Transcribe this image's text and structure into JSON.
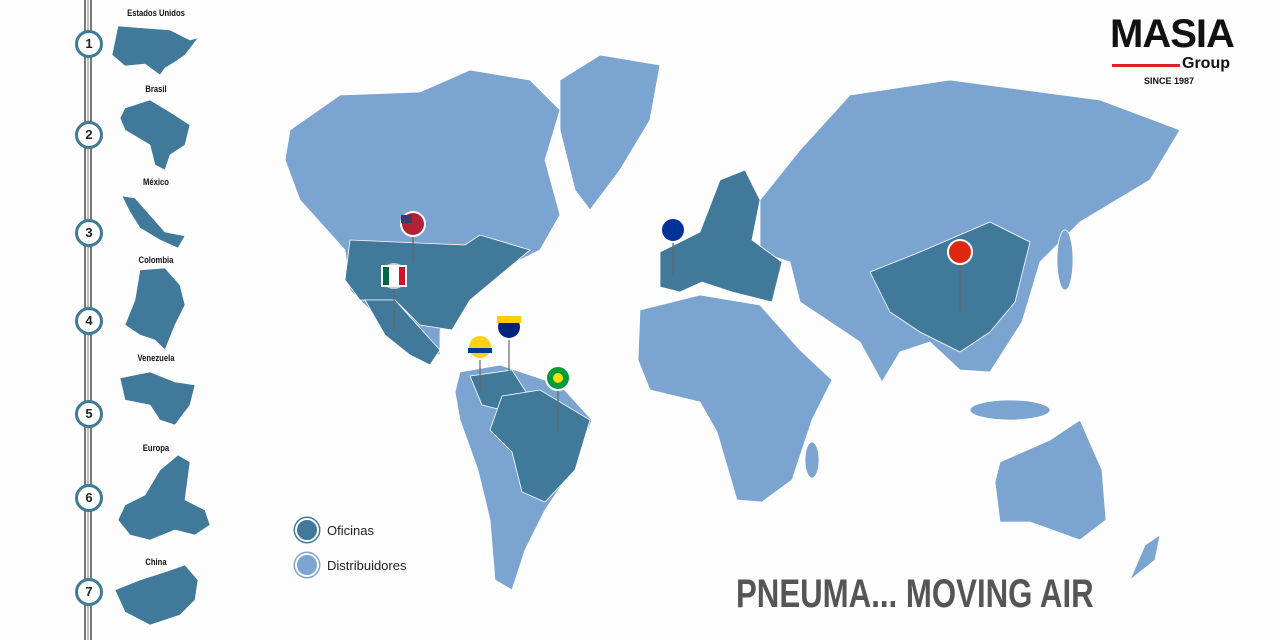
{
  "brand": {
    "name": "MASIA",
    "sub": "Group",
    "since": "SINCE 1987"
  },
  "colors": {
    "offices": "#41799a",
    "distributors": "#7ba4d1",
    "accent": "#d22222"
  },
  "steps": [
    {
      "n": "1",
      "country": "Estados Unidos"
    },
    {
      "n": "2",
      "country": "Brasil"
    },
    {
      "n": "3",
      "country": "México"
    },
    {
      "n": "4",
      "country": "Colombia"
    },
    {
      "n": "5",
      "country": "Venezuela"
    },
    {
      "n": "6",
      "country": "Europa"
    },
    {
      "n": "7",
      "country": "China"
    }
  ],
  "legend": {
    "offices": "Oficinas",
    "distributors": "Distribuidores"
  },
  "pins": [
    "usa-flag",
    "mexico-flag",
    "colombia-flag",
    "venezuela-flag",
    "brazil-flag",
    "eu-flag",
    "china-flag"
  ],
  "tagline": "PNEUMA... MOVING AIR"
}
